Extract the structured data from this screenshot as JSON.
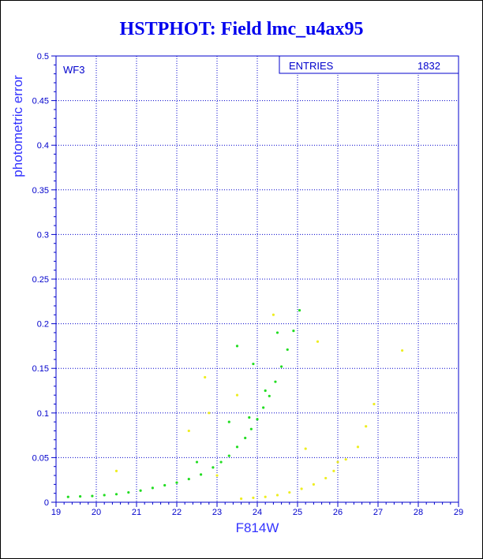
{
  "title": "HSTPHOT: Field lmc_u4ax95",
  "chart_data": {
    "type": "scatter",
    "title": "HSTPHOT: Field lmc_u4ax95",
    "xlabel": "F814W",
    "ylabel": "photometric error",
    "xlim": [
      19,
      29
    ],
    "ylim": [
      0,
      0.5
    ],
    "x_ticks": [
      "19",
      "20",
      "21",
      "22",
      "23",
      "24",
      "25",
      "26",
      "27",
      "28",
      "29"
    ],
    "y_ticks": [
      "0",
      "0.05",
      "0.1",
      "0.15",
      "0.2",
      "0.25",
      "0.3",
      "0.35",
      "0.4",
      "0.45",
      "0.5"
    ],
    "grid": true,
    "panel_label": "WF3",
    "stats_label": "ENTRIES",
    "stats_value": "1832",
    "colors": {
      "axes": "#0000cc",
      "grid": "#0000cc",
      "main": "#22dd22",
      "secondary": "#eeee22"
    },
    "series": [
      {
        "color": "#22dd22",
        "values": [
          [
            19.3,
            0.006
          ],
          [
            19.6,
            0.0065
          ],
          [
            19.9,
            0.007
          ],
          [
            20.2,
            0.008
          ],
          [
            20.5,
            0.009
          ],
          [
            20.8,
            0.011
          ],
          [
            21.1,
            0.013
          ],
          [
            21.4,
            0.016
          ],
          [
            21.7,
            0.019
          ],
          [
            22.0,
            0.022
          ],
          [
            22.3,
            0.026
          ],
          [
            22.6,
            0.031
          ],
          [
            22.9,
            0.039
          ],
          [
            23.1,
            0.045
          ],
          [
            23.3,
            0.052
          ],
          [
            23.5,
            0.062
          ],
          [
            23.7,
            0.072
          ],
          [
            23.85,
            0.082
          ],
          [
            24.0,
            0.093
          ],
          [
            24.15,
            0.106
          ],
          [
            24.3,
            0.119
          ],
          [
            24.45,
            0.135
          ],
          [
            24.6,
            0.152
          ],
          [
            24.75,
            0.171
          ],
          [
            24.9,
            0.192
          ],
          [
            25.05,
            0.215
          ],
          [
            23.5,
            0.175
          ],
          [
            24.2,
            0.125
          ],
          [
            23.8,
            0.095
          ],
          [
            22.5,
            0.045
          ],
          [
            23.9,
            0.155
          ],
          [
            24.5,
            0.19
          ],
          [
            23.3,
            0.09
          ]
        ]
      },
      {
        "color": "#eeee22",
        "values": [
          [
            23.6,
            0.004
          ],
          [
            23.9,
            0.005
          ],
          [
            24.2,
            0.006
          ],
          [
            24.5,
            0.008
          ],
          [
            24.8,
            0.011
          ],
          [
            25.1,
            0.015
          ],
          [
            25.4,
            0.02
          ],
          [
            25.7,
            0.027
          ],
          [
            25.9,
            0.035
          ],
          [
            26.2,
            0.048
          ],
          [
            26.5,
            0.062
          ],
          [
            26.7,
            0.085
          ],
          [
            26.9,
            0.11
          ],
          [
            27.6,
            0.17
          ],
          [
            25.5,
            0.18
          ],
          [
            24.4,
            0.21
          ],
          [
            22.7,
            0.14
          ],
          [
            22.3,
            0.08
          ],
          [
            23.5,
            0.12
          ],
          [
            22.8,
            0.1
          ],
          [
            25.2,
            0.06
          ],
          [
            26.0,
            0.045
          ],
          [
            20.5,
            0.035
          ],
          [
            23.0,
            0.03
          ]
        ]
      }
    ]
  }
}
